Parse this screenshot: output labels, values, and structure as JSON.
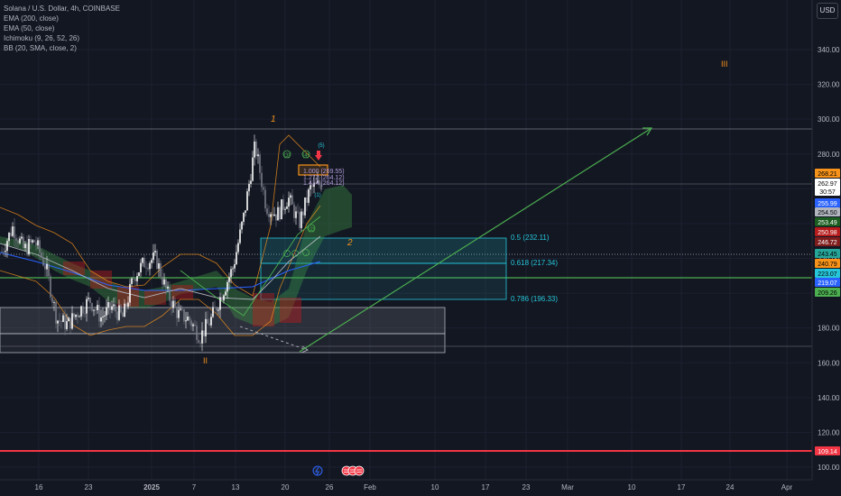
{
  "legend": {
    "symbol": "Solana / U.S. Dollar, 4h, COINBASE",
    "ind1": "EMA (200, close)",
    "ind2": "EMA (50, close)",
    "ind3": "Ichimoku (9, 26, 52, 26)",
    "ind4": "BB (20, SMA, close, 2)"
  },
  "currency_button": "USD",
  "colors": {
    "background": "#131722",
    "up_candle": "#ffffff",
    "wave_label": "#f7931a",
    "fib": "#26c6da",
    "support": "#4caf50",
    "resistance_line": "#f23645"
  },
  "chart_data": {
    "type": "candlestick",
    "title": "Solana / U.S. Dollar, 4h, COINBASE",
    "ylim": [
      98,
      362
    ],
    "y_ticks": [
      "100.00",
      "120.00",
      "140.00",
      "160.00",
      "180.00",
      "200.00",
      "220.00",
      "240.00",
      "260.00",
      "280.00",
      "300.00",
      "320.00",
      "340.00"
    ],
    "x_ticks": [
      "16",
      "23",
      "2025",
      "7",
      "13",
      "20",
      "26",
      "Feb",
      "10",
      "17",
      "23",
      "Mar",
      "10",
      "17",
      "24",
      "Apr"
    ],
    "close_path": [
      {
        "x": "Dec 10",
        "y": 224
      },
      {
        "x": "Dec 12",
        "y": 238
      },
      {
        "x": "Dec 14",
        "y": 225
      },
      {
        "x": "Dec 16",
        "y": 230
      },
      {
        "x": "Dec 18",
        "y": 215
      },
      {
        "x": "Dec 20",
        "y": 185
      },
      {
        "x": "Dec 21",
        "y": 182
      },
      {
        "x": "Dec 23",
        "y": 190
      },
      {
        "x": "Dec 25",
        "y": 196
      },
      {
        "x": "Dec 27",
        "y": 186
      },
      {
        "x": "Dec 29",
        "y": 192
      },
      {
        "x": "Dec 31",
        "y": 186
      },
      {
        "x": "Jan 2",
        "y": 210
      },
      {
        "x": "Jan 4",
        "y": 218
      },
      {
        "x": "Jan 6",
        "y": 220
      },
      {
        "x": "Jan 8",
        "y": 200
      },
      {
        "x": "Jan 9",
        "y": 188
      },
      {
        "x": "Jan 11",
        "y": 185
      },
      {
        "x": "Jan 13",
        "y": 175
      },
      {
        "x": "Jan 14",
        "y": 185
      },
      {
        "x": "Jan 16",
        "y": 200
      },
      {
        "x": "Jan 17",
        "y": 215
      },
      {
        "x": "Jan 18",
        "y": 245
      },
      {
        "x": "Jan 19",
        "y": 285
      },
      {
        "x": "Jan 20",
        "y": 250
      },
      {
        "x": "Jan 21",
        "y": 245
      },
      {
        "x": "Jan 22",
        "y": 255
      },
      {
        "x": "Jan 23",
        "y": 240
      },
      {
        "x": "Jan 24",
        "y": 260
      },
      {
        "x": "Jan 25",
        "y": 263
      }
    ],
    "price_scale_labels": [
      {
        "text": "268.21",
        "bg": "#f7931a",
        "fg": "#000000"
      },
      {
        "text": "262.97",
        "bg": "#ffffff",
        "fg": "#000000"
      },
      {
        "text": "30:57",
        "bg": "#ffffff",
        "fg": "#000000"
      },
      {
        "text": "255.99",
        "bg": "#2962ff",
        "fg": "#ffffff"
      },
      {
        "text": "254.50",
        "bg": "#b2b5be",
        "fg": "#000000"
      },
      {
        "text": "253.49",
        "bg": "#1b5e20",
        "fg": "#ffffff"
      },
      {
        "text": "250.98",
        "bg": "#b71c1c",
        "fg": "#ffffff"
      },
      {
        "text": "246.72",
        "bg": "#7f1d1d",
        "fg": "#ffffff"
      },
      {
        "text": "243.45",
        "bg": "#26a69a",
        "fg": "#000000"
      },
      {
        "text": "240.79",
        "bg": "#f7931a",
        "fg": "#000000"
      },
      {
        "text": "223.07",
        "bg": "#26c6da",
        "fg": "#000000"
      },
      {
        "text": "219.07",
        "bg": "#2962ff",
        "fg": "#ffffff"
      },
      {
        "text": "209.26",
        "bg": "#4caf50",
        "fg": "#000000"
      },
      {
        "text": "109.14",
        "bg": "#f23645",
        "fg": "#ffffff"
      }
    ],
    "fib_levels": [
      {
        "label": "0.5 (232.11)",
        "value": 232.11
      },
      {
        "label": "0.618 (217.34)",
        "value": 217.34
      },
      {
        "label": "0.786 (196.33)",
        "value": 196.33
      }
    ],
    "wave_labels": [
      "1",
      "2",
      "II",
      "III"
    ],
    "sub_wave_labels": [
      "(5)",
      "(3)",
      "(4)",
      "(1)",
      "(2)"
    ],
    "target_box_labels": [
      "1.000 (269.55)",
      "1.272 (264.12)",
      "1.414 (264.12)"
    ],
    "horizontal_lines": [
      {
        "name": "support",
        "value": 212.5
      },
      {
        "name": "high",
        "value": 295.5
      },
      {
        "name": "resistance-low",
        "value": 109.14
      }
    ],
    "projection": {
      "from": {
        "x": "Jan 26",
        "y": 167
      },
      "to": {
        "x": "Mar 7",
        "y": 296
      }
    }
  }
}
